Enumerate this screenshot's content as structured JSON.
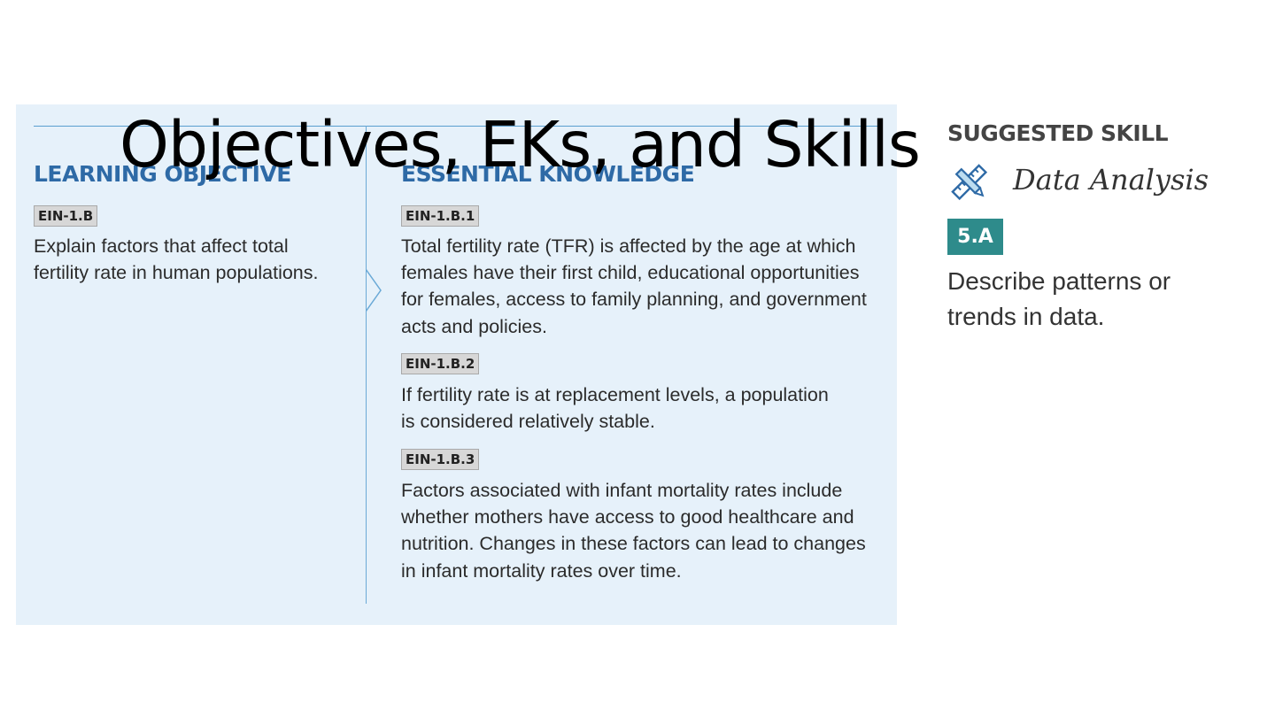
{
  "slide": {
    "title": "Objectives, EKs, and Skills"
  },
  "learning_objective": {
    "heading": "LEARNING OBJECTIVE",
    "code": "EIN-1.B",
    "text": "Explain factors that affect total fertility rate in human populations."
  },
  "essential_knowledge": {
    "heading": "ESSENTIAL KNOWLEDGE",
    "items": [
      {
        "code": "EIN-1.B.1",
        "text": "Total fertility rate (TFR) is affected by the age at which females have their first child, educational opportunities for females, access to family planning, and government acts and policies."
      },
      {
        "code": "EIN-1.B.2",
        "text": "If fertility rate is at replacement levels, a population is considered relatively stable."
      },
      {
        "code": "EIN-1.B.3",
        "text": "Factors associated with infant mortality rates include whether mothers have access to good healthcare and nutrition. Changes in these factors can lead to changes in infant mortality rates over time."
      }
    ]
  },
  "suggested_skill": {
    "heading": "SUGGESTED SKILL",
    "icon": "pencil-ruler-icon",
    "name": "Data Analysis",
    "code": "5.A",
    "text": "Describe patterns or trends in data."
  },
  "colors": {
    "panel_background": "#e6f1fa",
    "heading_blue": "#2e6aa6",
    "skill_teal": "#2e8b8b"
  }
}
